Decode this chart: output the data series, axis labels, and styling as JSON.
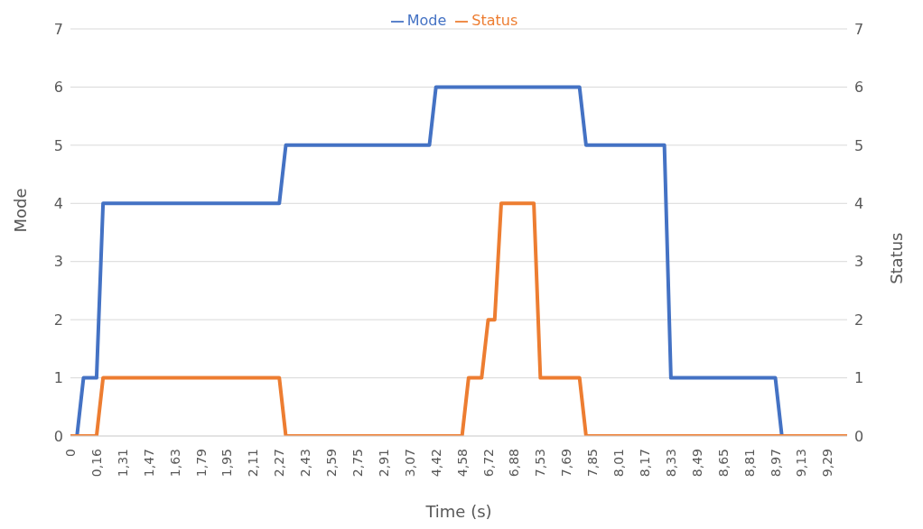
{
  "chart_data": {
    "type": "line",
    "xlabel": "Time (s)",
    "ylabel": "Mode",
    "y2label": "Status",
    "categories": [
      "0",
      null,
      null,
      null,
      "0,16",
      null,
      null,
      null,
      "1,31",
      null,
      null,
      null,
      "1,47",
      null,
      null,
      null,
      "1,63",
      null,
      null,
      null,
      "1,79",
      null,
      null,
      null,
      "1,95",
      null,
      null,
      null,
      "2,11",
      null,
      null,
      null,
      "2,27",
      null,
      null,
      null,
      "2,43",
      null,
      null,
      null,
      "2,59",
      null,
      null,
      null,
      "2,75",
      null,
      null,
      null,
      "2,91",
      null,
      null,
      null,
      "3,07",
      null,
      null,
      null,
      "4,42",
      null,
      null,
      null,
      "4,58",
      null,
      null,
      null,
      "6,72",
      null,
      null,
      null,
      "6,88",
      null,
      null,
      null,
      "7,53",
      null,
      null,
      null,
      "7,69",
      null,
      null,
      null,
      "7,85",
      null,
      null,
      null,
      "8,01",
      null,
      null,
      null,
      "8,17",
      null,
      null,
      null,
      "8,33",
      null,
      null,
      null,
      "8,49",
      null,
      null,
      null,
      "8,65",
      null,
      null,
      null,
      "8,81",
      null,
      null,
      null,
      "8,97",
      null,
      null,
      null,
      "9,13",
      null,
      null,
      null,
      "9,29",
      null,
      null,
      null
    ],
    "series": [
      {
        "name": "Mode",
        "color": "#4472c4",
        "values": [
          0,
          0,
          1,
          1,
          1,
          4,
          4,
          4,
          4,
          4,
          4,
          4,
          4,
          4,
          4,
          4,
          4,
          4,
          4,
          4,
          4,
          4,
          4,
          4,
          4,
          4,
          4,
          4,
          4,
          4,
          4,
          4,
          4,
          5,
          5,
          5,
          5,
          5,
          5,
          5,
          5,
          5,
          5,
          5,
          5,
          5,
          5,
          5,
          5,
          5,
          5,
          5,
          5,
          5,
          5,
          5,
          6,
          6,
          6,
          6,
          6,
          6,
          6,
          6,
          6,
          6,
          6,
          6,
          6,
          6,
          6,
          6,
          6,
          6,
          6,
          6,
          6,
          6,
          6,
          5,
          5,
          5,
          5,
          5,
          5,
          5,
          5,
          5,
          5,
          5,
          5,
          5,
          1,
          1,
          1,
          1,
          1,
          1,
          1,
          1,
          1,
          1,
          1,
          1,
          1,
          1,
          1,
          1,
          1,
          0,
          0,
          0,
          null,
          null,
          null,
          null,
          null,
          null,
          null,
          null
        ]
      },
      {
        "name": "Status",
        "color": "#ed7d31",
        "axis": "y2",
        "values": [
          0,
          0,
          0,
          0,
          0,
          1,
          1,
          1,
          1,
          1,
          1,
          1,
          1,
          1,
          1,
          1,
          1,
          1,
          1,
          1,
          1,
          1,
          1,
          1,
          1,
          1,
          1,
          1,
          1,
          1,
          1,
          1,
          1,
          0,
          0,
          0,
          0,
          0,
          0,
          0,
          0,
          0,
          0,
          0,
          0,
          0,
          0,
          0,
          0,
          0,
          0,
          0,
          0,
          0,
          0,
          0,
          0,
          0,
          0,
          0,
          0,
          1,
          1,
          1,
          2,
          2,
          4,
          4,
          4,
          4,
          4,
          4,
          1,
          1,
          1,
          1,
          1,
          1,
          1,
          0,
          0,
          0,
          0,
          0,
          0,
          0,
          0,
          0,
          0,
          0,
          0,
          0,
          0,
          0,
          0,
          0,
          0,
          0,
          0,
          0,
          0,
          0,
          0,
          0,
          0,
          0,
          0,
          0,
          0,
          0,
          0,
          0,
          0,
          0,
          0,
          0,
          0,
          0,
          0,
          0
        ]
      }
    ],
    "ylim": [
      0,
      7
    ],
    "yticks": [
      0,
      1,
      2,
      3,
      4,
      5,
      6,
      7
    ],
    "y2lim": [
      0,
      7
    ],
    "y2ticks": [
      0,
      1,
      2,
      3,
      4,
      5,
      6,
      7
    ],
    "grid": "y",
    "legend": "top"
  }
}
